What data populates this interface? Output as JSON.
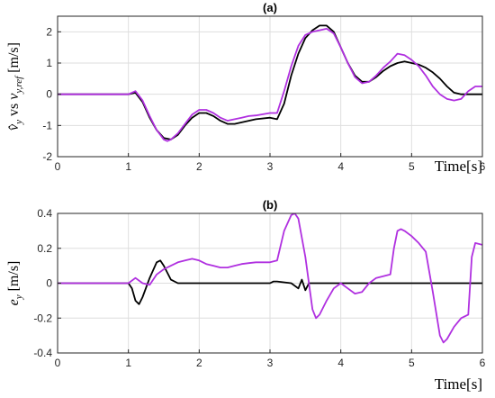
{
  "chart_data": [
    {
      "type": "line",
      "title": "(a)",
      "xlabel": "Time[s]",
      "ylabel": "v̂_y vs v_y,ref [m/s]",
      "ylabel_parts": {
        "a": "v̂",
        "a_sub": "y",
        "vs": " vs ",
        "b": "v",
        "b_sub": "y,ref",
        "unit": " [m/s]"
      },
      "xlim": [
        0,
        6
      ],
      "ylim": [
        -2,
        2.5
      ],
      "x_ticks": [
        0,
        1,
        2,
        3,
        4,
        5,
        6
      ],
      "y_ticks": [
        -2,
        -1,
        0,
        1,
        2
      ],
      "grid": true,
      "series": [
        {
          "color": "#000000",
          "points": [
            [
              0,
              0
            ],
            [
              1.0,
              0
            ],
            [
              1.1,
              0.05
            ],
            [
              1.2,
              -0.25
            ],
            [
              1.3,
              -0.75
            ],
            [
              1.4,
              -1.15
            ],
            [
              1.5,
              -1.4
            ],
            [
              1.6,
              -1.45
            ],
            [
              1.7,
              -1.3
            ],
            [
              1.8,
              -1.0
            ],
            [
              1.9,
              -0.75
            ],
            [
              2.0,
              -0.6
            ],
            [
              2.1,
              -0.6
            ],
            [
              2.2,
              -0.7
            ],
            [
              2.3,
              -0.85
            ],
            [
              2.4,
              -0.95
            ],
            [
              2.5,
              -0.95
            ],
            [
              2.6,
              -0.9
            ],
            [
              2.8,
              -0.8
            ],
            [
              3.0,
              -0.75
            ],
            [
              3.1,
              -0.8
            ],
            [
              3.2,
              -0.3
            ],
            [
              3.3,
              0.6
            ],
            [
              3.4,
              1.3
            ],
            [
              3.5,
              1.8
            ],
            [
              3.6,
              2.05
            ],
            [
              3.7,
              2.2
            ],
            [
              3.8,
              2.2
            ],
            [
              3.9,
              2.0
            ],
            [
              4.0,
              1.5
            ],
            [
              4.1,
              1.0
            ],
            [
              4.2,
              0.6
            ],
            [
              4.3,
              0.4
            ],
            [
              4.4,
              0.4
            ],
            [
              4.5,
              0.55
            ],
            [
              4.6,
              0.75
            ],
            [
              4.7,
              0.9
            ],
            [
              4.8,
              1.0
            ],
            [
              4.9,
              1.05
            ],
            [
              5.0,
              1.0
            ],
            [
              5.1,
              0.95
            ],
            [
              5.2,
              0.85
            ],
            [
              5.3,
              0.7
            ],
            [
              5.4,
              0.5
            ],
            [
              5.5,
              0.25
            ],
            [
              5.6,
              0.05
            ],
            [
              5.7,
              0
            ],
            [
              6.0,
              0
            ]
          ]
        },
        {
          "color": "#b030e0",
          "points": [
            [
              0,
              0
            ],
            [
              1.0,
              0
            ],
            [
              1.1,
              0.1
            ],
            [
              1.2,
              -0.2
            ],
            [
              1.3,
              -0.7
            ],
            [
              1.4,
              -1.15
            ],
            [
              1.5,
              -1.45
            ],
            [
              1.55,
              -1.5
            ],
            [
              1.6,
              -1.45
            ],
            [
              1.7,
              -1.25
            ],
            [
              1.8,
              -0.95
            ],
            [
              1.9,
              -0.65
            ],
            [
              2.0,
              -0.5
            ],
            [
              2.1,
              -0.5
            ],
            [
              2.2,
              -0.6
            ],
            [
              2.3,
              -0.75
            ],
            [
              2.4,
              -0.85
            ],
            [
              2.5,
              -0.8
            ],
            [
              2.6,
              -0.75
            ],
            [
              2.7,
              -0.7
            ],
            [
              2.8,
              -0.68
            ],
            [
              3.0,
              -0.6
            ],
            [
              3.1,
              -0.6
            ],
            [
              3.2,
              0.1
            ],
            [
              3.3,
              0.9
            ],
            [
              3.4,
              1.55
            ],
            [
              3.5,
              1.9
            ],
            [
              3.6,
              2.0
            ],
            [
              3.7,
              2.05
            ],
            [
              3.8,
              2.1
            ],
            [
              3.9,
              1.95
            ],
            [
              4.0,
              1.5
            ],
            [
              4.1,
              1.0
            ],
            [
              4.2,
              0.55
            ],
            [
              4.3,
              0.35
            ],
            [
              4.4,
              0.4
            ],
            [
              4.5,
              0.6
            ],
            [
              4.6,
              0.85
            ],
            [
              4.7,
              1.05
            ],
            [
              4.8,
              1.3
            ],
            [
              4.9,
              1.25
            ],
            [
              5.0,
              1.1
            ],
            [
              5.1,
              0.9
            ],
            [
              5.2,
              0.6
            ],
            [
              5.3,
              0.25
            ],
            [
              5.4,
              0.0
            ],
            [
              5.5,
              -0.15
            ],
            [
              5.6,
              -0.2
            ],
            [
              5.7,
              -0.15
            ],
            [
              5.8,
              0.1
            ],
            [
              5.9,
              0.25
            ],
            [
              6.0,
              0.25
            ]
          ]
        }
      ]
    },
    {
      "type": "line",
      "title": "(b)",
      "xlabel": "Time[s]",
      "ylabel": "e_y [m/s]",
      "ylabel_parts": {
        "a": "e",
        "a_sub": "y",
        "unit": " [m/s]"
      },
      "xlim": [
        0,
        6
      ],
      "ylim": [
        -0.4,
        0.4
      ],
      "x_ticks": [
        0,
        1,
        2,
        3,
        4,
        5,
        6
      ],
      "y_ticks": [
        -0.4,
        -0.2,
        0,
        0.2,
        0.4
      ],
      "y_tick_labels": [
        "-0.4",
        "-0.2",
        "0",
        "0.2",
        "0.4"
      ],
      "grid": true,
      "series": [
        {
          "color": "#000000",
          "points": [
            [
              0,
              0
            ],
            [
              1.0,
              0
            ],
            [
              1.05,
              -0.03
            ],
            [
              1.1,
              -0.1
            ],
            [
              1.15,
              -0.12
            ],
            [
              1.2,
              -0.08
            ],
            [
              1.3,
              0.03
            ],
            [
              1.4,
              0.12
            ],
            [
              1.45,
              0.13
            ],
            [
              1.5,
              0.1
            ],
            [
              1.6,
              0.02
            ],
            [
              1.7,
              0
            ],
            [
              2.0,
              0
            ],
            [
              2.5,
              0
            ],
            [
              3.0,
              0
            ],
            [
              3.05,
              0.01
            ],
            [
              3.1,
              0.01
            ],
            [
              3.3,
              0
            ],
            [
              3.4,
              -0.03
            ],
            [
              3.45,
              0.02
            ],
            [
              3.5,
              -0.04
            ],
            [
              3.55,
              0
            ],
            [
              3.6,
              0
            ],
            [
              4.0,
              0
            ],
            [
              5.0,
              0
            ],
            [
              6.0,
              0
            ]
          ]
        },
        {
          "color": "#b030e0",
          "points": [
            [
              0,
              0
            ],
            [
              1.0,
              0
            ],
            [
              1.1,
              0.03
            ],
            [
              1.2,
              0
            ],
            [
              1.3,
              -0.01
            ],
            [
              1.4,
              0.05
            ],
            [
              1.5,
              0.08
            ],
            [
              1.6,
              0.1
            ],
            [
              1.7,
              0.12
            ],
            [
              1.8,
              0.13
            ],
            [
              1.9,
              0.14
            ],
            [
              2.0,
              0.13
            ],
            [
              2.1,
              0.11
            ],
            [
              2.2,
              0.1
            ],
            [
              2.3,
              0.09
            ],
            [
              2.4,
              0.09
            ],
            [
              2.5,
              0.1
            ],
            [
              2.6,
              0.11
            ],
            [
              2.7,
              0.115
            ],
            [
              2.8,
              0.12
            ],
            [
              2.9,
              0.12
            ],
            [
              3.0,
              0.12
            ],
            [
              3.1,
              0.13
            ],
            [
              3.2,
              0.3
            ],
            [
              3.3,
              0.39
            ],
            [
              3.35,
              0.4
            ],
            [
              3.4,
              0.37
            ],
            [
              3.5,
              0.15
            ],
            [
              3.6,
              -0.15
            ],
            [
              3.65,
              -0.2
            ],
            [
              3.7,
              -0.18
            ],
            [
              3.8,
              -0.1
            ],
            [
              3.9,
              -0.03
            ],
            [
              4.0,
              0
            ],
            [
              4.1,
              -0.03
            ],
            [
              4.2,
              -0.06
            ],
            [
              4.3,
              -0.05
            ],
            [
              4.4,
              0
            ],
            [
              4.5,
              0.03
            ],
            [
              4.6,
              0.04
            ],
            [
              4.7,
              0.05
            ],
            [
              4.75,
              0.2
            ],
            [
              4.8,
              0.3
            ],
            [
              4.85,
              0.31
            ],
            [
              4.9,
              0.3
            ],
            [
              5.0,
              0.27
            ],
            [
              5.1,
              0.23
            ],
            [
              5.2,
              0.18
            ],
            [
              5.3,
              -0.05
            ],
            [
              5.4,
              -0.3
            ],
            [
              5.45,
              -0.34
            ],
            [
              5.5,
              -0.32
            ],
            [
              5.6,
              -0.25
            ],
            [
              5.7,
              -0.2
            ],
            [
              5.8,
              -0.18
            ],
            [
              5.85,
              0.15
            ],
            [
              5.9,
              0.23
            ],
            [
              6.0,
              0.22
            ]
          ]
        }
      ]
    }
  ]
}
